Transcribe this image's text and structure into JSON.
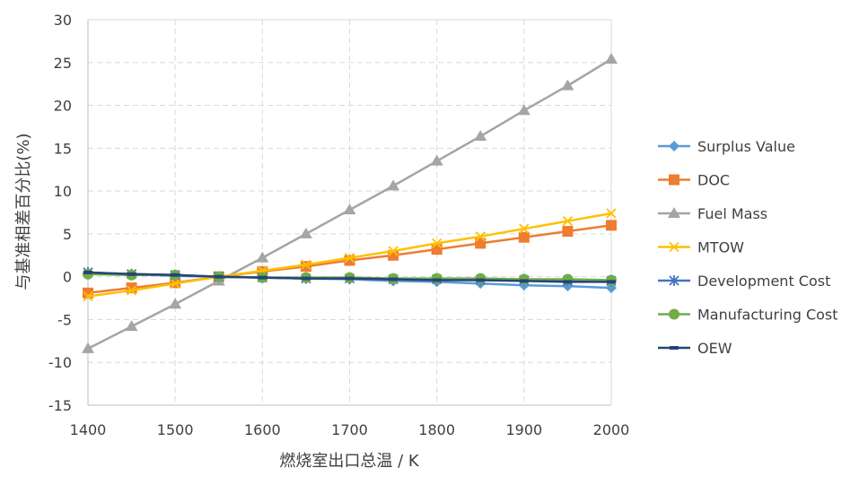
{
  "chart_data": {
    "type": "line",
    "title": "",
    "xlabel": "燃烧室出口总温 / K",
    "ylabel": "与基准相差百分比(%)",
    "xlim": [
      1400,
      2000
    ],
    "ylim": [
      -15,
      30
    ],
    "grid": true,
    "legend_position": "right",
    "x_ticks": [
      "1400",
      "1500",
      "1600",
      "1700",
      "1800",
      "1900",
      "2000"
    ],
    "y_ticks": [
      "30",
      "25",
      "20",
      "15",
      "10",
      "5",
      "0",
      "-5",
      "-10",
      "-15"
    ],
    "x": [
      1400,
      1450,
      1500,
      1550,
      1600,
      1650,
      1700,
      1750,
      1800,
      1850,
      1900,
      1950,
      2000
    ],
    "series": [
      {
        "name": "Surplus Value",
        "color": "#5B9BD5",
        "marker": "diamond",
        "values": [
          0.4,
          0.3,
          0.1,
          0.0,
          -0.1,
          -0.2,
          -0.3,
          -0.5,
          -0.6,
          -0.8,
          -1.0,
          -1.1,
          -1.3
        ]
      },
      {
        "name": "DOC",
        "color": "#ED7D31",
        "marker": "square",
        "values": [
          -1.9,
          -1.3,
          -0.7,
          0.0,
          0.6,
          1.2,
          1.9,
          2.5,
          3.2,
          3.9,
          4.6,
          5.3,
          6.0
        ]
      },
      {
        "name": "Fuel Mass",
        "color": "#A5A5A5",
        "marker": "triangle",
        "values": [
          -8.4,
          -5.8,
          -3.2,
          -0.5,
          2.2,
          5.0,
          7.8,
          10.6,
          13.5,
          16.4,
          19.4,
          22.3,
          25.4
        ]
      },
      {
        "name": "MTOW",
        "color": "#FFC000",
        "marker": "x",
        "values": [
          -2.3,
          -1.6,
          -0.8,
          0.0,
          0.7,
          1.4,
          2.2,
          3.0,
          3.9,
          4.7,
          5.6,
          6.5,
          7.4
        ]
      },
      {
        "name": "Development Cost",
        "color": "#4472C4",
        "marker": "star",
        "values": [
          0.5,
          0.3,
          0.2,
          0.0,
          -0.1,
          -0.2,
          -0.2,
          -0.3,
          -0.3,
          -0.4,
          -0.4,
          -0.5,
          -0.5
        ]
      },
      {
        "name": "Manufacturing Cost",
        "color": "#70AD47",
        "marker": "circle",
        "values": [
          0.3,
          0.2,
          0.2,
          0.0,
          -0.1,
          -0.1,
          -0.1,
          -0.2,
          -0.2,
          -0.2,
          -0.3,
          -0.3,
          -0.4
        ]
      },
      {
        "name": "OEW",
        "color": "#264478",
        "marker": "dash",
        "values": [
          0.5,
          0.3,
          0.2,
          0.0,
          -0.1,
          -0.2,
          -0.2,
          -0.3,
          -0.4,
          -0.4,
          -0.5,
          -0.6,
          -0.6
        ]
      }
    ]
  }
}
